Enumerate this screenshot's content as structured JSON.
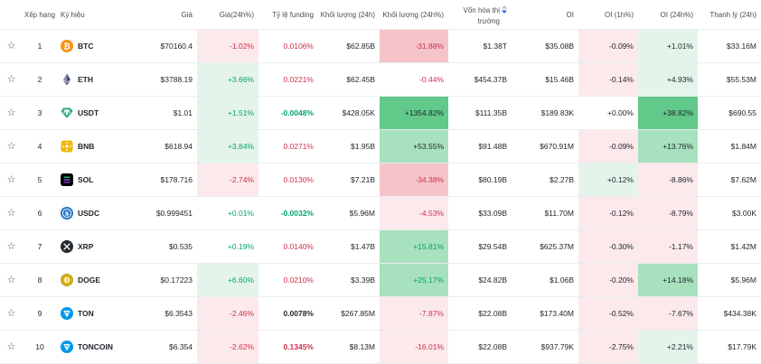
{
  "colors": {
    "red_text": "#cf304a",
    "green_text": "#03a66d",
    "red_bg": "#fbe9eb",
    "red_bg_strong": "#f5c4ca",
    "green_bg": "#e4f4ea",
    "green_bg_strong": "#a7e1bd",
    "green_bg_max": "#61c98a"
  },
  "headers": {
    "rank": "Xếp hạng",
    "symbol": "Ký hiệu",
    "price": "Giá",
    "price_change": "Giá(24h%)",
    "funding": "Tỷ lệ funding",
    "volume": "Khối lượng (24h)",
    "volume_change": "Khối lượng (24h%)",
    "market_cap_l1": "Vốn hóa thị",
    "market_cap_l2": "trường",
    "oi": "OI",
    "oi_1h": "OI (1h%)",
    "oi_24h": "OI (24h%)",
    "liquidation": "Thanh lý (24h)"
  },
  "rows": [
    {
      "rank": "1",
      "symbol": "BTC",
      "icon": "bitcoin-icon",
      "price": "$70160.4",
      "price_change": "-1.02%",
      "funding": "0.0106%",
      "volume": "$62.85B",
      "volume_change": "-31.88%",
      "market_cap": "$1.38T",
      "oi": "$35.08B",
      "oi_1h": "-0.09%",
      "oi_24h": "+1.01%",
      "liquidation": "$33.16M"
    },
    {
      "rank": "2",
      "symbol": "ETH",
      "icon": "ethereum-icon",
      "price": "$3788.19",
      "price_change": "+3.66%",
      "funding": "0.0221%",
      "volume": "$62.45B",
      "volume_change": "-0.44%",
      "market_cap": "$454.37B",
      "oi": "$15.46B",
      "oi_1h": "-0.14%",
      "oi_24h": "+4.93%",
      "liquidation": "$55.53M"
    },
    {
      "rank": "3",
      "symbol": "USDT",
      "icon": "tether-icon",
      "price": "$1.01",
      "price_change": "+1.51%",
      "funding": "-0.0048%",
      "volume": "$428.05K",
      "volume_change": "+1354.82%",
      "market_cap": "$111.35B",
      "oi": "$189.83K",
      "oi_1h": "+0.00%",
      "oi_24h": "+38.82%",
      "liquidation": "$690.55"
    },
    {
      "rank": "4",
      "symbol": "BNB",
      "icon": "bnb-icon",
      "price": "$618.94",
      "price_change": "+3.84%",
      "funding": "0.0271%",
      "volume": "$1.95B",
      "volume_change": "+53.55%",
      "market_cap": "$91.48B",
      "oi": "$670.91M",
      "oi_1h": "-0.09%",
      "oi_24h": "+13.76%",
      "liquidation": "$1.84M"
    },
    {
      "rank": "5",
      "symbol": "SOL",
      "icon": "solana-icon",
      "price": "$178.716",
      "price_change": "-2.74%",
      "funding": "0.0130%",
      "volume": "$7.21B",
      "volume_change": "-34.38%",
      "market_cap": "$80.19B",
      "oi": "$2.27B",
      "oi_1h": "+0.12%",
      "oi_24h": "-8.86%",
      "liquidation": "$7.62M"
    },
    {
      "rank": "6",
      "symbol": "USDC",
      "icon": "usdc-icon",
      "price": "$0.999451",
      "price_change": "+0.01%",
      "funding": "-0.0032%",
      "volume": "$5.96M",
      "volume_change": "-4.53%",
      "market_cap": "$33.09B",
      "oi": "$11.70M",
      "oi_1h": "-0.12%",
      "oi_24h": "-8.79%",
      "liquidation": "$3.00K"
    },
    {
      "rank": "7",
      "symbol": "XRP",
      "icon": "xrp-icon",
      "price": "$0.535",
      "price_change": "+0.19%",
      "funding": "0.0140%",
      "volume": "$1.47B",
      "volume_change": "+15.81%",
      "market_cap": "$29.54B",
      "oi": "$625.37M",
      "oi_1h": "-0.30%",
      "oi_24h": "-1.17%",
      "liquidation": "$1.42M"
    },
    {
      "rank": "8",
      "symbol": "DOGE",
      "icon": "dogecoin-icon",
      "price": "$0.17223",
      "price_change": "+6.60%",
      "funding": "0.0210%",
      "volume": "$3.39B",
      "volume_change": "+25.17%",
      "market_cap": "$24.82B",
      "oi": "$1.06B",
      "oi_1h": "-0.20%",
      "oi_24h": "+14.18%",
      "liquidation": "$5.96M"
    },
    {
      "rank": "9",
      "symbol": "TON",
      "icon": "toncoin-icon",
      "price": "$6.3543",
      "price_change": "-2.46%",
      "funding": "0.0078%",
      "volume": "$267.85M",
      "volume_change": "-7.87%",
      "market_cap": "$22.08B",
      "oi": "$173.40M",
      "oi_1h": "-0.52%",
      "oi_24h": "-7.67%",
      "liquidation": "$434.38K"
    },
    {
      "rank": "10",
      "symbol": "TONCOIN",
      "icon": "toncoin-icon",
      "price": "$6.354",
      "price_change": "-2.62%",
      "funding": "0.1345%",
      "volume": "$8.13M",
      "volume_change": "-16.01%",
      "market_cap": "$22.08B",
      "oi": "$937.79K",
      "oi_1h": "-2.75%",
      "oi_24h": "+2.21%",
      "liquidation": "$17.79K"
    }
  ]
}
